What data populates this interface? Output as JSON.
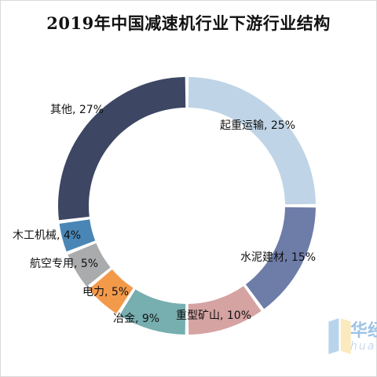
{
  "chart_data": {
    "type": "pie",
    "variant": "donut",
    "title": "2019年中国减速机行业下游行业结构",
    "slices": [
      {
        "name": "起重运输",
        "label": "起重运输, 25%",
        "value": 25,
        "color": "#bfd4e6"
      },
      {
        "name": "水泥建材",
        "label": "水泥建材, 15%",
        "value": 15,
        "color": "#6e7ca8"
      },
      {
        "name": "重型矿山",
        "label": "重型矿山, 10%",
        "value": 10,
        "color": "#d4a3a2"
      },
      {
        "name": "冶金",
        "label": "冶金, 9%",
        "value": 9,
        "color": "#77aeb0"
      },
      {
        "name": "电力",
        "label": "电力, 5%",
        "value": 5,
        "color": "#f39a4a"
      },
      {
        "name": "航空专用",
        "label": "航空专用, 5%",
        "value": 5,
        "color": "#a9abac"
      },
      {
        "name": "木工机械",
        "label": "木工机械, 4%",
        "value": 4,
        "color": "#4a86b5"
      },
      {
        "name": "其他",
        "label": "其他, 27%",
        "value": 27,
        "color": "#3d4663"
      }
    ]
  },
  "watermark": {
    "brand": "华经",
    "sub": "hua"
  }
}
